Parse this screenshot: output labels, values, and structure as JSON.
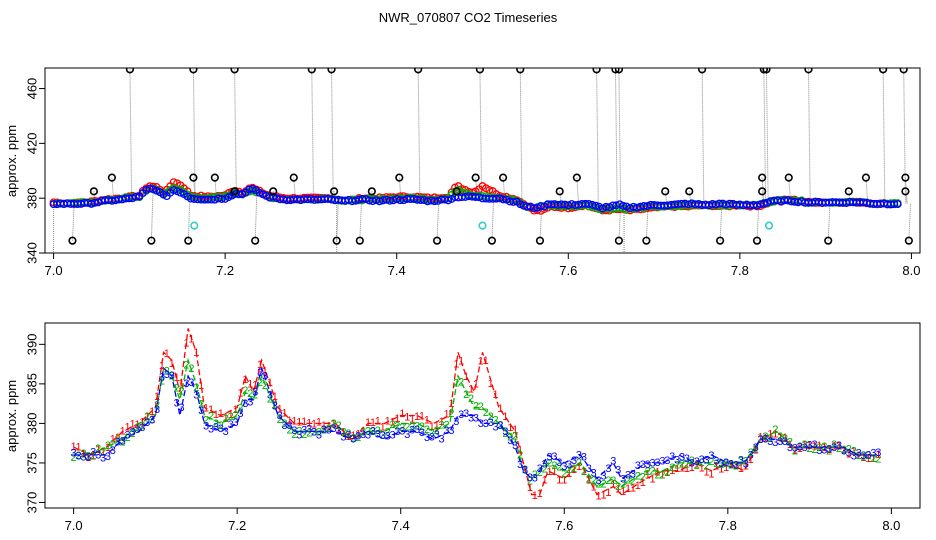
{
  "title": "NWR_070807  CO2 Timeseries",
  "colors": {
    "series1": "#ff0000",
    "series2": "#00b000",
    "series3": "#0000ff",
    "flagged": "#000000",
    "cyan": "#33cccc",
    "trace": "#888888"
  },
  "chart_data": [
    {
      "type": "scatter",
      "title": "",
      "xlabel": "",
      "ylabel": "approx. ppm",
      "xlim": [
        6.99,
        8.01
      ],
      "ylim": [
        340,
        475
      ],
      "x_ticks": [
        "7.0",
        "7.2",
        "7.4",
        "7.6",
        "7.8",
        "8.0"
      ],
      "y_ticks": [
        "340",
        "380",
        "420",
        "460"
      ],
      "grid": false,
      "legend": "none",
      "high_outliers_y": 474,
      "high_outliers_x": [
        7.089,
        7.163,
        7.211,
        7.301,
        7.324,
        7.425,
        7.497,
        7.544,
        7.633,
        7.655,
        7.659,
        7.756,
        7.828,
        7.831,
        7.88,
        7.967,
        7.991
      ],
      "low_outliers_y": 349,
      "low_outliers_x": [
        7.022,
        7.114,
        7.157,
        7.235,
        7.33,
        7.357,
        7.447,
        7.511,
        7.567,
        7.659,
        7.691,
        7.777,
        7.82,
        7.903,
        7.997
      ],
      "mid_outliers": [
        [
          7.047,
          385
        ],
        [
          7.068,
          395
        ],
        [
          7.163,
          395
        ],
        [
          7.188,
          395
        ],
        [
          7.211,
          385
        ],
        [
          7.256,
          385
        ],
        [
          7.28,
          395
        ],
        [
          7.327,
          385
        ],
        [
          7.371,
          385
        ],
        [
          7.403,
          395
        ],
        [
          7.47,
          385
        ],
        [
          7.492,
          395
        ],
        [
          7.524,
          395
        ],
        [
          7.59,
          385
        ],
        [
          7.61,
          395
        ],
        [
          7.713,
          385
        ],
        [
          7.741,
          385
        ],
        [
          7.826,
          385
        ],
        [
          7.826,
          395
        ],
        [
          7.857,
          395
        ],
        [
          7.927,
          385
        ],
        [
          7.947,
          395
        ],
        [
          7.993,
          385
        ],
        [
          7.993,
          395
        ]
      ],
      "cyan_points": [
        [
          7.164,
          360
        ],
        [
          7.5,
          360
        ],
        [
          7.834,
          360
        ]
      ]
    },
    {
      "type": "line",
      "title": "",
      "xlabel": "",
      "ylabel": "approx. ppm",
      "xlim": [
        6.965,
        8.035
      ],
      "ylim": [
        369.3,
        392.7
      ],
      "x_ticks": [
        "7.0",
        "7.2",
        "7.4",
        "7.6",
        "7.8",
        "8.0"
      ],
      "y_ticks": [
        "370",
        "375",
        "380",
        "385",
        "390"
      ],
      "grid": false,
      "legend": "none",
      "series": [
        {
          "symbol": "1",
          "color": "#ff0000"
        },
        {
          "symbol": "2",
          "color": "#00b000"
        },
        {
          "symbol": "3",
          "color": "#0000ff"
        }
      ],
      "x": [
        7.0,
        7.02,
        7.04,
        7.06,
        7.08,
        7.1,
        7.11,
        7.12,
        7.13,
        7.14,
        7.15,
        7.16,
        7.18,
        7.2,
        7.21,
        7.22,
        7.23,
        7.25,
        7.27,
        7.3,
        7.32,
        7.34,
        7.36,
        7.38,
        7.4,
        7.42,
        7.44,
        7.46,
        7.47,
        7.48,
        7.49,
        7.5,
        7.52,
        7.54,
        7.55,
        7.56,
        7.57,
        7.58,
        7.6,
        7.62,
        7.64,
        7.66,
        7.67,
        7.7,
        7.72,
        7.74,
        7.76,
        7.78,
        7.8,
        7.82,
        7.84,
        7.86,
        7.88,
        7.9,
        7.92,
        7.94,
        7.96,
        7.98
      ],
      "values": [
        [
          377,
          376,
          377,
          379,
          380,
          382,
          389,
          388,
          384,
          392,
          389,
          382,
          381,
          382,
          386,
          384,
          388,
          382,
          380,
          380,
          380,
          378,
          380,
          380,
          381,
          381,
          380,
          381,
          389,
          386,
          384,
          389,
          382,
          379,
          375,
          371,
          371,
          374,
          373,
          375,
          371,
          372,
          371,
          373,
          374,
          374,
          375,
          374,
          375,
          374,
          378,
          379,
          377,
          377,
          377,
          377,
          376,
          376
        ],
        [
          376,
          376,
          377,
          378,
          380,
          381,
          387,
          386,
          383,
          388,
          385,
          381,
          380,
          381,
          384,
          383,
          386,
          381,
          379,
          379,
          380,
          378,
          379,
          379,
          380,
          380,
          379,
          380,
          386,
          384,
          382,
          382,
          380,
          378,
          374,
          373,
          374,
          375,
          374,
          375,
          372,
          373,
          372,
          374,
          374,
          375,
          375,
          375,
          375,
          375,
          378,
          379,
          377,
          377,
          377,
          377,
          376,
          376
        ],
        [
          376,
          376,
          376,
          378,
          379,
          381,
          387,
          386,
          381,
          386,
          384,
          380,
          379,
          380,
          383,
          383,
          387,
          381,
          379,
          379,
          379,
          378,
          379,
          378,
          379,
          379,
          378,
          379,
          381,
          381,
          381,
          380,
          380,
          377,
          374,
          373,
          374,
          376,
          375,
          376,
          373,
          375,
          373,
          375,
          375,
          376,
          375,
          376,
          375,
          375,
          378,
          378,
          377,
          377,
          377,
          377,
          376,
          376
        ]
      ]
    }
  ]
}
